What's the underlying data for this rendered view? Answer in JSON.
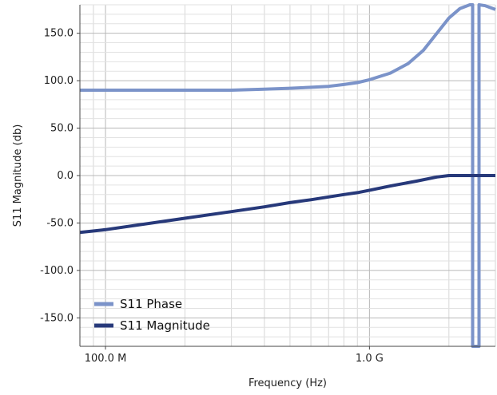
{
  "chart_data": {
    "type": "line",
    "xlabel": "Frequency (Hz)",
    "ylabel": "S11 Magnitude (db)",
    "x_scale": "log",
    "xlim": [
      80000000,
      3000000000
    ],
    "ylim": [
      -180,
      180
    ],
    "grid": true,
    "legend_position": "bottom-left",
    "x_ticks": [
      {
        "value": 100000000,
        "label": "100.0 M"
      },
      {
        "value": 1000000000,
        "label": "1.0 G"
      }
    ],
    "y_ticks": [
      {
        "value": 150,
        "label": "150.0"
      },
      {
        "value": 100,
        "label": "100.0"
      },
      {
        "value": 50,
        "label": "50.0"
      },
      {
        "value": 0,
        "label": "0.0"
      },
      {
        "value": -50,
        "label": "-50.0"
      },
      {
        "value": -100,
        "label": "-100.0"
      },
      {
        "value": -150,
        "label": "-150.0"
      }
    ],
    "series": [
      {
        "name": "S11 Phase",
        "color": "#7b93c9",
        "x": [
          80000000,
          100000000,
          200000000,
          300000000,
          400000000,
          500000000,
          600000000,
          700000000,
          800000000,
          900000000,
          1000000000,
          1200000000,
          1400000000,
          1600000000,
          1800000000,
          2000000000,
          2200000000,
          2400000000,
          2460000000,
          2460000000,
          2600000000,
          2600000000,
          2750000000,
          3000000000
        ],
        "y": [
          90,
          90,
          90,
          90,
          91,
          92,
          93,
          94,
          96,
          98,
          101,
          108,
          118,
          132,
          150,
          166,
          176,
          180,
          180,
          -180,
          -180,
          180,
          179,
          175
        ]
      },
      {
        "name": "S11 Magnitude",
        "color": "#27397a",
        "x": [
          80000000,
          100000000,
          200000000,
          300000000,
          400000000,
          500000000,
          600000000,
          700000000,
          800000000,
          900000000,
          1000000000,
          1200000000,
          1500000000,
          1800000000,
          2000000000,
          2500000000,
          3000000000
        ],
        "y": [
          -60,
          -57,
          -45,
          -38,
          -33,
          -28.5,
          -25.5,
          -22.5,
          -20,
          -18,
          -15.5,
          -11,
          -6,
          -1.5,
          0,
          0,
          0
        ]
      }
    ]
  }
}
